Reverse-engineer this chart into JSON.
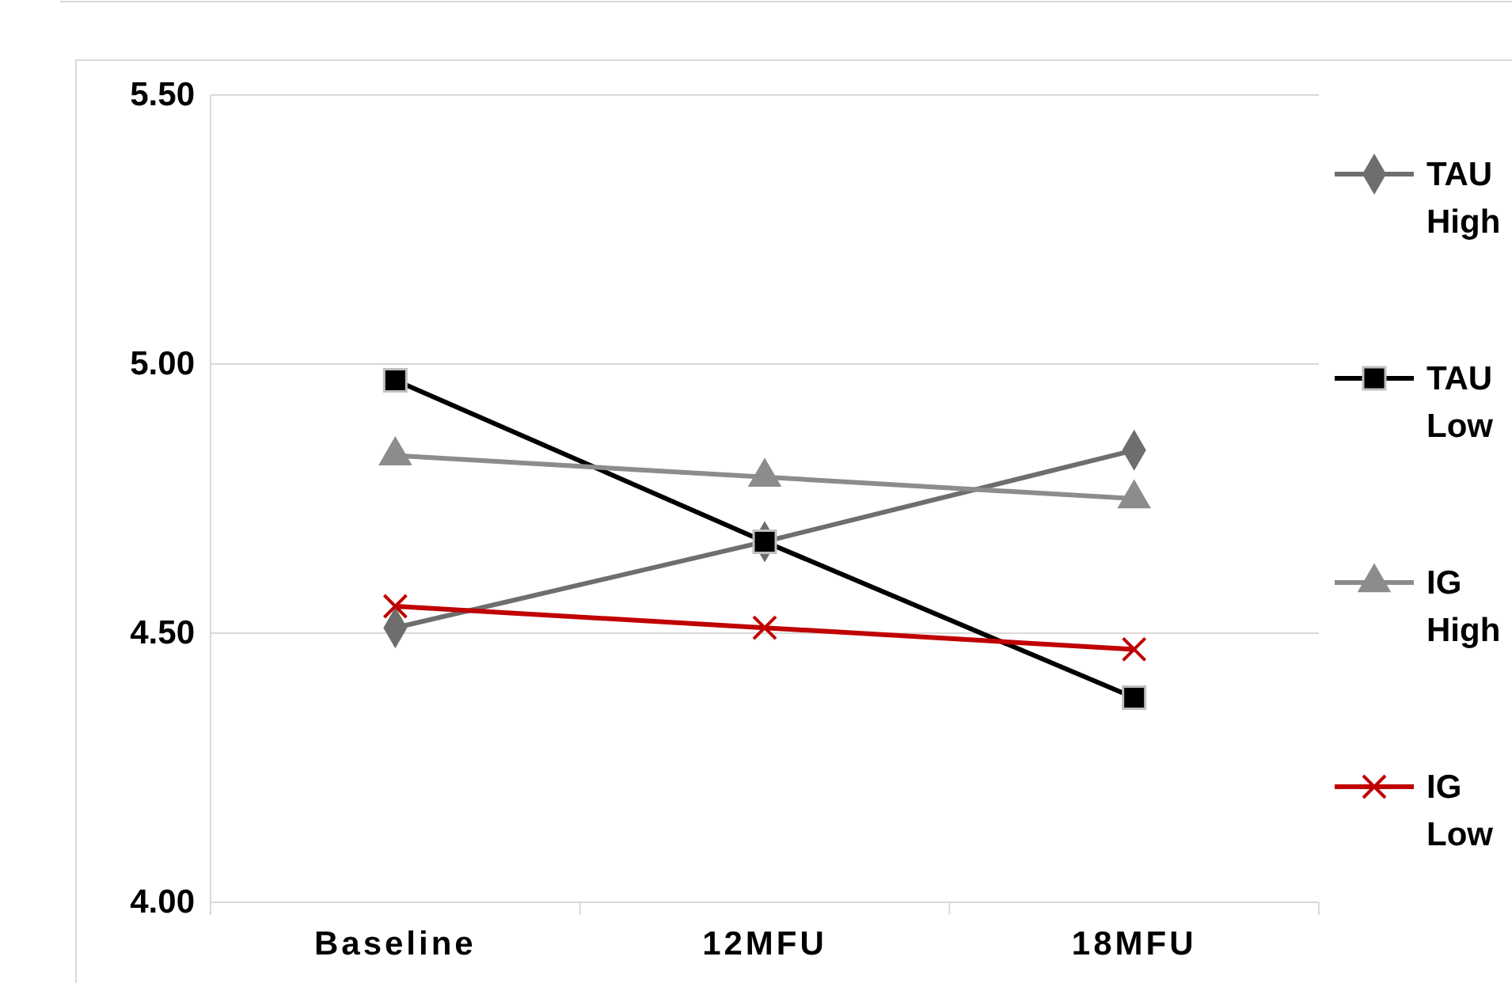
{
  "chart_data": {
    "type": "line",
    "categories": [
      "Baseline",
      "12MFU",
      "18MFU"
    ],
    "series": [
      {
        "name": "TAU High",
        "color": "#6e6e6e",
        "marker": "diamond",
        "values": [
          4.51,
          4.67,
          4.84
        ]
      },
      {
        "name": "TAU Low",
        "color": "#000000",
        "marker": "square",
        "values": [
          4.97,
          4.67,
          4.38
        ]
      },
      {
        "name": "IG High",
        "color": "#8c8c8c",
        "marker": "triangle",
        "values": [
          4.83,
          4.79,
          4.75
        ]
      },
      {
        "name": "IG Low",
        "color": "#c00000",
        "marker": "cross",
        "values": [
          4.55,
          4.51,
          4.47
        ]
      }
    ],
    "ylim": [
      4.0,
      5.5
    ],
    "yticks": [
      {
        "value": 4.0,
        "label": "4.00"
      },
      {
        "value": 4.5,
        "label": "4.50"
      },
      {
        "value": 5.0,
        "label": "5.00"
      },
      {
        "value": 5.5,
        "label": "5.50"
      }
    ],
    "grid": "y",
    "legend": "right",
    "line_style": "solid"
  }
}
